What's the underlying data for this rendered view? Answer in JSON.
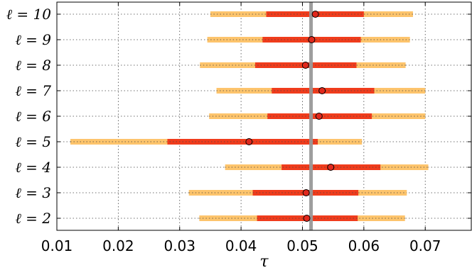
{
  "chart_data": {
    "type": "scatter",
    "xlabel": "τ",
    "ylabel": "",
    "title": "",
    "xlim": [
      0.01,
      0.0775
    ],
    "xticks": [
      0.01,
      0.02,
      0.03,
      0.04,
      0.05,
      0.06,
      0.07
    ],
    "xtick_labels": [
      "0.01",
      "0.02",
      "0.03",
      "0.04",
      "0.05",
      "0.06",
      "0.07"
    ],
    "grid": true,
    "reference_line": 0.0514,
    "rows": [
      {
        "label": "ℓ = 10",
        "value": 0.0521,
        "inner": [
          0.0441,
          0.06
        ],
        "outer": [
          0.035,
          0.068
        ]
      },
      {
        "label": "ℓ = 9",
        "value": 0.0515,
        "inner": [
          0.0435,
          0.0595
        ],
        "outer": [
          0.0345,
          0.0675
        ]
      },
      {
        "label": "ℓ = 8",
        "value": 0.0505,
        "inner": [
          0.0423,
          0.0588
        ],
        "outer": [
          0.0333,
          0.0668
        ]
      },
      {
        "label": "ℓ = 7",
        "value": 0.0532,
        "inner": [
          0.045,
          0.0617
        ],
        "outer": [
          0.036,
          0.07
        ]
      },
      {
        "label": "ℓ = 6",
        "value": 0.0527,
        "inner": [
          0.0443,
          0.0613
        ],
        "outer": [
          0.0348,
          0.07
        ]
      },
      {
        "label": "ℓ = 5",
        "value": 0.0413,
        "inner": [
          0.028,
          0.0525
        ],
        "outer": [
          0.0122,
          0.0597
        ]
      },
      {
        "label": "ℓ = 4",
        "value": 0.0546,
        "inner": [
          0.0466,
          0.0627
        ],
        "outer": [
          0.0374,
          0.0705
        ]
      },
      {
        "label": "ℓ = 3",
        "value": 0.0506,
        "inner": [
          0.0419,
          0.0591
        ],
        "outer": [
          0.0315,
          0.067
        ]
      },
      {
        "label": "ℓ = 2",
        "value": 0.0507,
        "inner": [
          0.0426,
          0.059
        ],
        "outer": [
          0.0332,
          0.0667
        ]
      }
    ],
    "colors": {
      "outer_band": "#fdc46c",
      "inner_band": "#f03c1c",
      "marker_fill": "#e0281c",
      "reference_line": "#999999",
      "grid": "#444444"
    }
  }
}
